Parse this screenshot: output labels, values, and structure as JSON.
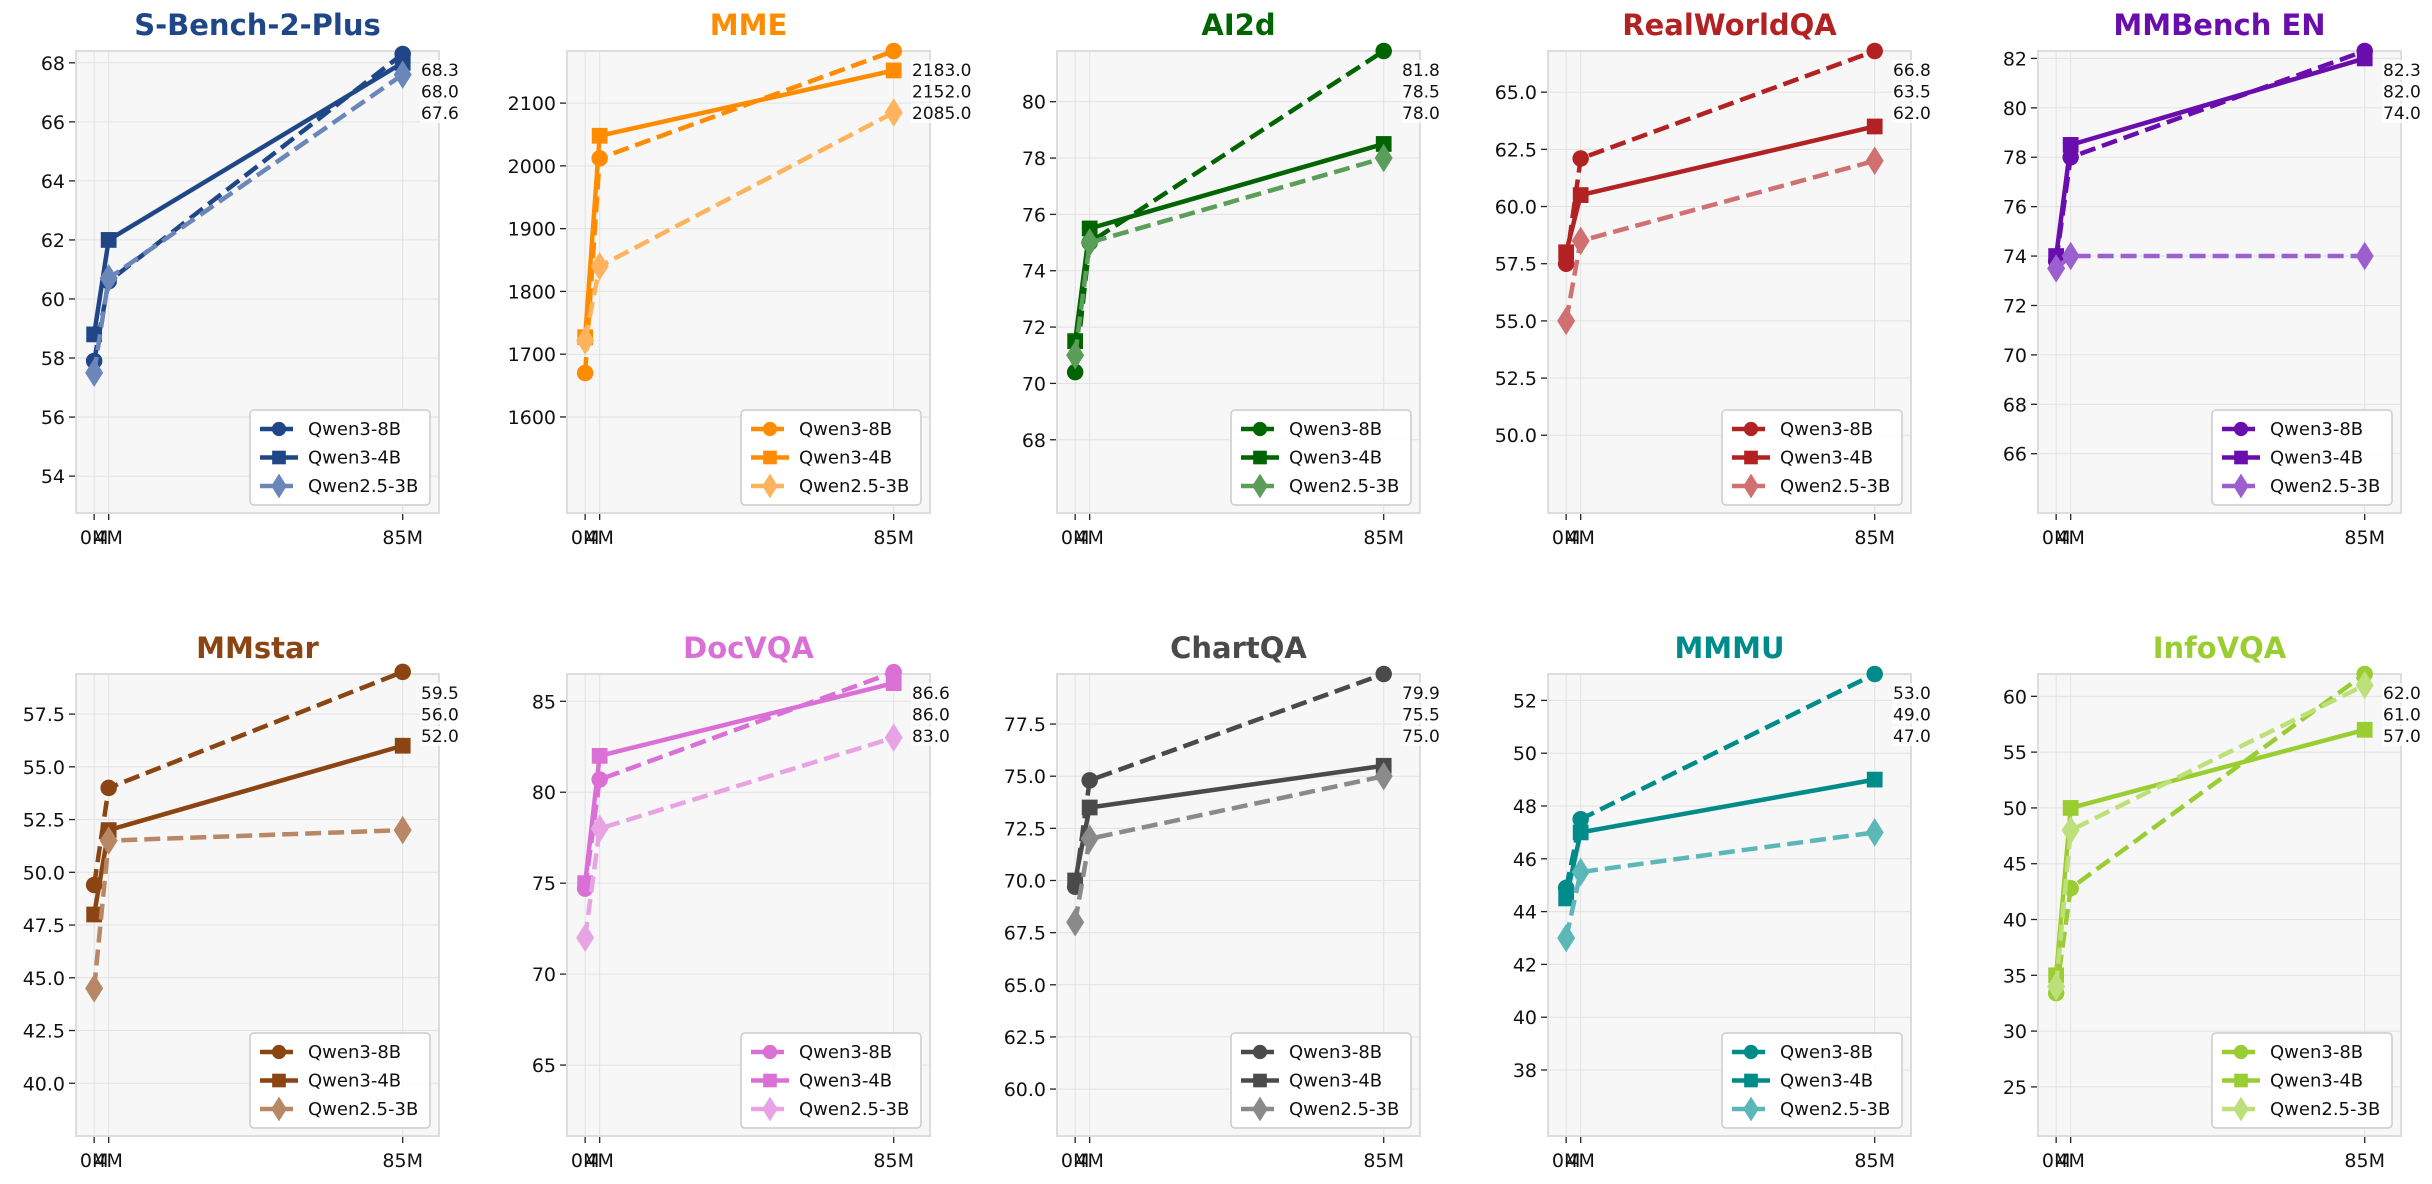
{
  "chart_data": [
    {
      "type": "line",
      "title": "S-Bench-2-Plus",
      "title_color": "#1f4788",
      "x": [
        0,
        4,
        85
      ],
      "xtick_labels": [
        "0M",
        "4M",
        "85M"
      ],
      "xlim": [
        -5,
        95
      ],
      "ylim": [
        52.75,
        68.4
      ],
      "yticks": [
        54,
        56,
        58,
        60,
        62,
        64,
        66,
        68
      ],
      "ytick_format": "int",
      "grid": true,
      "legend_position": "lower-right",
      "series": [
        {
          "name": "Qwen3-8B",
          "values": [
            57.9,
            60.6,
            68.3
          ],
          "color": "#1f4788",
          "style": "dashed",
          "marker": "circle"
        },
        {
          "name": "Qwen3-4B",
          "values": [
            58.8,
            62.0,
            68.0
          ],
          "color": "#1f4788",
          "style": "solid",
          "marker": "square"
        },
        {
          "name": "Qwen2.5-3B",
          "values": [
            57.5,
            60.7,
            67.6
          ],
          "color": "#6b86b8",
          "style": "dashed",
          "marker": "diamond"
        }
      ],
      "end_labels": [
        "68.3",
        "68.0",
        "67.6"
      ]
    },
    {
      "type": "line",
      "title": "MME",
      "title_color": "#ff8c00",
      "x": [
        0,
        4,
        85
      ],
      "xtick_labels": [
        "0M",
        "4M",
        "85M"
      ],
      "xlim": [
        -5,
        95
      ],
      "ylim": [
        1447,
        2183
      ],
      "yticks": [
        1600,
        1700,
        1800,
        1900,
        2000,
        2100
      ],
      "ytick_format": "int",
      "grid": true,
      "legend_position": "lower-right",
      "series": [
        {
          "name": "Qwen3-8B",
          "values": [
            1670,
            2012,
            2183
          ],
          "color": "#ff8c00",
          "style": "dashed",
          "marker": "circle"
        },
        {
          "name": "Qwen3-4B",
          "values": [
            1727,
            2048,
            2152
          ],
          "color": "#ff8c00",
          "style": "solid",
          "marker": "square"
        },
        {
          "name": "Qwen2.5-3B",
          "values": [
            1722,
            1840,
            2085
          ],
          "color": "#ffb35c",
          "style": "dashed",
          "marker": "diamond"
        }
      ],
      "end_labels": [
        "2183.0",
        "2152.0",
        "2085.0"
      ]
    },
    {
      "type": "line",
      "title": "AI2d",
      "title_color": "#006400",
      "x": [
        0,
        4,
        85
      ],
      "xtick_labels": [
        "0M",
        "4M",
        "85M"
      ],
      "xlim": [
        -5,
        95
      ],
      "ylim": [
        65.4,
        81.8
      ],
      "yticks": [
        68,
        70,
        72,
        74,
        76,
        78,
        80
      ],
      "ytick_format": "int",
      "grid": true,
      "legend_position": "lower-right",
      "series": [
        {
          "name": "Qwen3-8B",
          "values": [
            70.4,
            75.0,
            81.8
          ],
          "color": "#006400",
          "style": "dashed",
          "marker": "circle"
        },
        {
          "name": "Qwen3-4B",
          "values": [
            71.5,
            75.5,
            78.5
          ],
          "color": "#006400",
          "style": "solid",
          "marker": "square"
        },
        {
          "name": "Qwen2.5-3B",
          "values": [
            71.0,
            75.0,
            78.0
          ],
          "color": "#5a9e5a",
          "style": "dashed",
          "marker": "diamond"
        }
      ],
      "end_labels": [
        "81.8",
        "78.5",
        "78.0"
      ]
    },
    {
      "type": "line",
      "title": "RealWorldQA",
      "title_color": "#b22222",
      "x": [
        0,
        4,
        85
      ],
      "xtick_labels": [
        "0M",
        "4M",
        "85M"
      ],
      "xlim": [
        -5,
        95
      ],
      "ylim": [
        46.6,
        66.8
      ],
      "yticks": [
        50.0,
        52.5,
        55.0,
        57.5,
        60.0,
        62.5,
        65.0
      ],
      "ytick_format": "1dp",
      "grid": true,
      "legend_position": "lower-right",
      "series": [
        {
          "name": "Qwen3-8B",
          "values": [
            57.5,
            62.1,
            66.8
          ],
          "color": "#b22222",
          "style": "dashed",
          "marker": "circle"
        },
        {
          "name": "Qwen3-4B",
          "values": [
            58.0,
            60.5,
            63.5
          ],
          "color": "#b22222",
          "style": "solid",
          "marker": "square"
        },
        {
          "name": "Qwen2.5-3B",
          "values": [
            55.0,
            58.5,
            62.0
          ],
          "color": "#d07070",
          "style": "dashed",
          "marker": "diamond"
        }
      ],
      "end_labels": [
        "66.8",
        "63.5",
        "62.0"
      ]
    },
    {
      "type": "line",
      "title": "MMBench EN",
      "title_color": "#6a0dad",
      "x": [
        0,
        4,
        85
      ],
      "xtick_labels": [
        "0M",
        "4M",
        "85M"
      ],
      "xlim": [
        -5,
        95
      ],
      "ylim": [
        63.6,
        82.3
      ],
      "yticks": [
        66,
        68,
        70,
        72,
        74,
        76,
        78,
        80,
        82
      ],
      "ytick_format": "int",
      "grid": true,
      "legend_position": "lower-right",
      "series": [
        {
          "name": "Qwen3-8B",
          "values": [
            73.8,
            78.0,
            82.3
          ],
          "color": "#6a0dad",
          "style": "dashed",
          "marker": "circle"
        },
        {
          "name": "Qwen3-4B",
          "values": [
            74.0,
            78.5,
            82.0
          ],
          "color": "#6a0dad",
          "style": "solid",
          "marker": "square"
        },
        {
          "name": "Qwen2.5-3B",
          "values": [
            73.5,
            74.0,
            74.0
          ],
          "color": "#9b5fcf",
          "style": "dashed",
          "marker": "diamond"
        }
      ],
      "end_labels": [
        "82.3",
        "82.0",
        "74.0"
      ]
    },
    {
      "type": "line",
      "title": "MMstar",
      "title_color": "#8b4513",
      "x": [
        0,
        4,
        85
      ],
      "xtick_labels": [
        "0M",
        "4M",
        "85M"
      ],
      "xlim": [
        -5,
        95
      ],
      "ylim": [
        37.5,
        59.4
      ],
      "yticks": [
        40.0,
        42.5,
        45.0,
        47.5,
        50.0,
        52.5,
        55.0,
        57.5
      ],
      "ytick_format": "1dp",
      "grid": true,
      "legend_position": "lower-right",
      "series": [
        {
          "name": "Qwen3-8B",
          "values": [
            49.4,
            54.0,
            59.5
          ],
          "color": "#8b4513",
          "style": "dashed",
          "marker": "circle"
        },
        {
          "name": "Qwen3-4B",
          "values": [
            48.0,
            52.0,
            56.0
          ],
          "color": "#8b4513",
          "style": "solid",
          "marker": "square"
        },
        {
          "name": "Qwen2.5-3B",
          "values": [
            44.5,
            51.5,
            52.0
          ],
          "color": "#b88766",
          "style": "dashed",
          "marker": "diamond"
        }
      ],
      "end_labels": [
        "59.5",
        "56.0",
        "52.0"
      ]
    },
    {
      "type": "line",
      "title": "DocVQA",
      "title_color": "#da70d6",
      "x": [
        0,
        4,
        85
      ],
      "xtick_labels": [
        "0M",
        "4M",
        "85M"
      ],
      "xlim": [
        -5,
        95
      ],
      "ylim": [
        61.1,
        86.5
      ],
      "yticks": [
        65,
        70,
        75,
        80,
        85
      ],
      "ytick_format": "int",
      "grid": true,
      "legend_position": "lower-right",
      "series": [
        {
          "name": "Qwen3-8B",
          "values": [
            74.7,
            80.7,
            86.6
          ],
          "color": "#da70d6",
          "style": "dashed",
          "marker": "circle"
        },
        {
          "name": "Qwen3-4B",
          "values": [
            75.0,
            82.0,
            86.0
          ],
          "color": "#da70d6",
          "style": "solid",
          "marker": "square"
        },
        {
          "name": "Qwen2.5-3B",
          "values": [
            72.0,
            78.0,
            83.0
          ],
          "color": "#e8a3e4",
          "style": "dashed",
          "marker": "diamond"
        }
      ],
      "end_labels": [
        "86.6",
        "86.0",
        "83.0"
      ]
    },
    {
      "type": "line",
      "title": "ChartQA",
      "title_color": "#4a4a4a",
      "x": [
        0,
        4,
        85
      ],
      "xtick_labels": [
        "0M",
        "4M",
        "85M"
      ],
      "xlim": [
        -5,
        95
      ],
      "ylim": [
        57.75,
        79.9
      ],
      "yticks": [
        60.0,
        62.5,
        65.0,
        67.5,
        70.0,
        72.5,
        75.0,
        77.5
      ],
      "ytick_format": "1dp",
      "grid": true,
      "legend_position": "lower-right",
      "series": [
        {
          "name": "Qwen3-8B",
          "values": [
            69.7,
            74.8,
            79.9
          ],
          "color": "#4a4a4a",
          "style": "dashed",
          "marker": "circle"
        },
        {
          "name": "Qwen3-4B",
          "values": [
            70.0,
            73.5,
            75.5
          ],
          "color": "#4a4a4a",
          "style": "solid",
          "marker": "square"
        },
        {
          "name": "Qwen2.5-3B",
          "values": [
            68.0,
            72.0,
            75.0
          ],
          "color": "#8a8a8a",
          "style": "dashed",
          "marker": "diamond"
        }
      ],
      "end_labels": [
        "79.9",
        "75.5",
        "75.0"
      ]
    },
    {
      "type": "line",
      "title": "MMMU",
      "title_color": "#008b8b",
      "x": [
        0,
        4,
        85
      ],
      "xtick_labels": [
        "0M",
        "4M",
        "85M"
      ],
      "xlim": [
        -5,
        95
      ],
      "ylim": [
        35.5,
        53.0
      ],
      "yticks": [
        38,
        40,
        42,
        44,
        46,
        48,
        50,
        52
      ],
      "ytick_format": "int",
      "grid": true,
      "legend_position": "lower-right",
      "series": [
        {
          "name": "Qwen3-8B",
          "values": [
            44.9,
            47.5,
            53.0
          ],
          "color": "#008b8b",
          "style": "dashed",
          "marker": "circle"
        },
        {
          "name": "Qwen3-4B",
          "values": [
            44.5,
            47.0,
            49.0
          ],
          "color": "#008b8b",
          "style": "solid",
          "marker": "square"
        },
        {
          "name": "Qwen2.5-3B",
          "values": [
            43.0,
            45.5,
            47.0
          ],
          "color": "#5cb8b8",
          "style": "dashed",
          "marker": "diamond"
        }
      ],
      "end_labels": [
        "53.0",
        "49.0",
        "47.0"
      ]
    },
    {
      "type": "line",
      "title": "InfoVQA",
      "title_color": "#9acd32",
      "x": [
        0,
        4,
        85
      ],
      "xtick_labels": [
        "0M",
        "4M",
        "85M"
      ],
      "xlim": [
        -5,
        95
      ],
      "ylim": [
        20.6,
        62.0
      ],
      "yticks": [
        25,
        30,
        35,
        40,
        45,
        50,
        55,
        60
      ],
      "ytick_format": "int",
      "grid": true,
      "legend_position": "lower-right",
      "series": [
        {
          "name": "Qwen3-8B",
          "values": [
            33.4,
            42.8,
            62.0
          ],
          "color": "#9acd32",
          "style": "dashed",
          "marker": "circle"
        },
        {
          "name": "Qwen3-4B",
          "values": [
            35.0,
            50.0,
            57.0
          ],
          "color": "#9acd32",
          "style": "solid",
          "marker": "square"
        },
        {
          "name": "Qwen2.5-3B",
          "values": [
            34.0,
            48.0,
            61.0
          ],
          "color": "#bde07a",
          "style": "dashed",
          "marker": "diamond"
        }
      ],
      "end_labels": [
        "62.0",
        "61.0",
        "57.0"
      ]
    }
  ]
}
